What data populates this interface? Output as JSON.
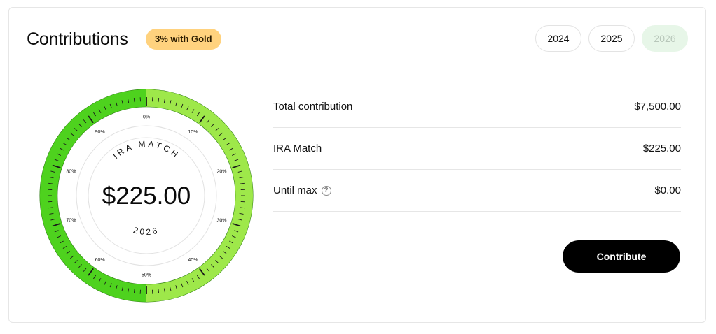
{
  "header": {
    "title": "Contributions",
    "badge": "3% with Gold",
    "years": [
      {
        "label": "2024",
        "selected": false
      },
      {
        "label": "2025",
        "selected": false
      },
      {
        "label": "2026",
        "selected": true
      }
    ]
  },
  "gauge": {
    "amount": "$225.00",
    "top_label": "IRA MATCH",
    "bottom_label": "2026",
    "progress_fraction": 0.5,
    "percent_labels": [
      "0%",
      "10%",
      "20%",
      "30%",
      "40%",
      "50%",
      "60%",
      "70%",
      "80%",
      "90%"
    ],
    "colors": {
      "filled": "#4ed21e",
      "remaining": "#9ee84a",
      "tick": "#1a1a1a"
    }
  },
  "summary": {
    "rows": [
      {
        "label": "Total contribution",
        "value": "$7,500.00",
        "help": false
      },
      {
        "label": "IRA Match",
        "value": "$225.00",
        "help": false
      },
      {
        "label": "Until max",
        "value": "$0.00",
        "help": true
      }
    ]
  },
  "actions": {
    "contribute_label": "Contribute"
  },
  "icons": {
    "help": "question-circle-icon"
  }
}
